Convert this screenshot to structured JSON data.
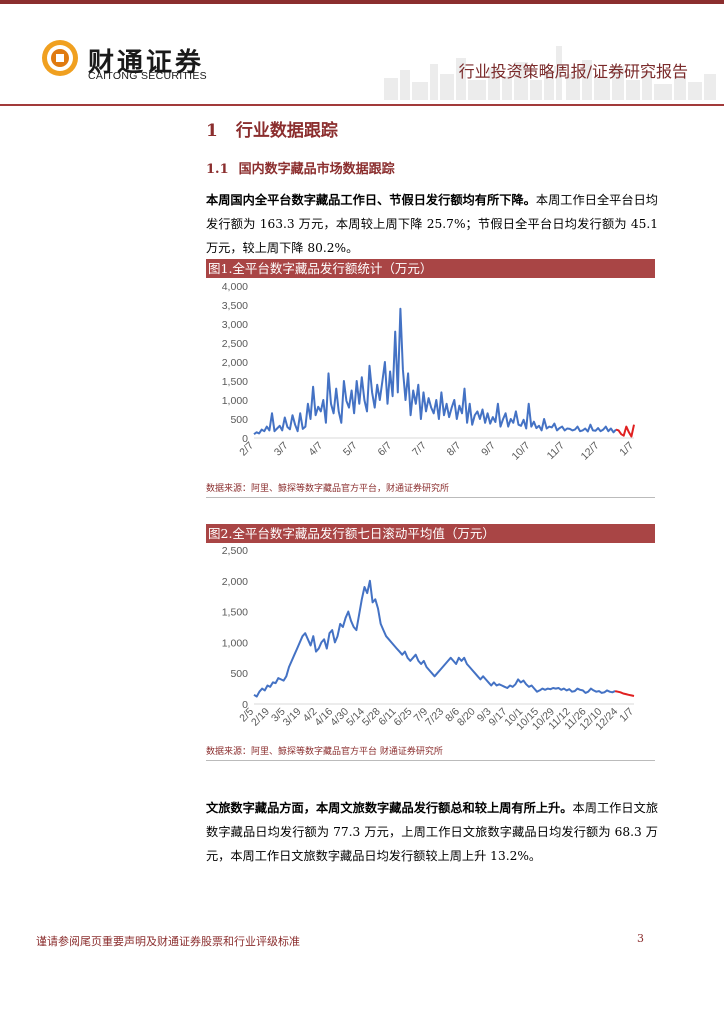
{
  "header": {
    "company_cn": "财通证券",
    "company_en": "CAITONG SECURITIES",
    "report_type": "行业投资策略周报/证券研究报告"
  },
  "section1": {
    "num": "1",
    "title": "行业数据跟踪"
  },
  "section1_1": {
    "num": "1.1",
    "title": "国内数字藏品市场数据跟踪"
  },
  "para1": {
    "bold": "本周国内全平台数字藏品工作日、节假日发行额均有所下降。",
    "rest": "本周工作日全平台日均发行额为 163.3 万元，本周较上周下降 25.7%；节假日全平台日均发行额为 45.1 万元，较上周下降 80.2%。"
  },
  "para2": {
    "bold": "文旅数字藏品方面，本周文旅数字藏品发行额总和较上周有所上升。",
    "rest": "本周工作日文旅数字藏品日均发行额为 77.3 万元，上周工作日文旅数字藏品日均发行额为 68.3 万元，本周工作日文旅数字藏品日均发行额较上周上升 13.2%。"
  },
  "figure1": {
    "title": "图1.全平台数字藏品发行额统计（万元）",
    "source": "数据来源：阿里、鲸探等数字藏品官方平台，财通证券研究所"
  },
  "figure2": {
    "title": "图2.全平台数字藏品发行额七日滚动平均值（万元）",
    "source": "数据来源：阿里、鲸探等数字藏品官方平台 财通证券研究所"
  },
  "footer": {
    "disclaimer": "谨请参阅尾页重要声明及财通证券股票和行业评级标准",
    "page": "3"
  },
  "colors": {
    "accent": "#8b2e2e",
    "series": "#4472c4",
    "recent": "#e02020"
  },
  "chart_data": [
    {
      "type": "line",
      "ylim": [
        0,
        4000
      ],
      "yticks": [
        "0",
        "500",
        "1,000",
        "1,500",
        "2,000",
        "2,500",
        "3,000",
        "3,500",
        "4,000"
      ],
      "xticks": [
        "2/7",
        "3/7",
        "4/7",
        "5/7",
        "6/7",
        "7/7",
        "8/7",
        "9/7",
        "10/7",
        "11/7",
        "12/7",
        "1/7"
      ],
      "series": [
        {
          "values": [
            100,
            150,
            120,
            220,
            180,
            300,
            200,
            650,
            180,
            250,
            320,
            200,
            540,
            290,
            230,
            600,
            350,
            180,
            650,
            240,
            300,
            900,
            500,
            1350,
            600,
            820,
            700,
            1000,
            400,
            1700,
            900,
            650,
            1300,
            700,
            400,
            1500,
            980,
            800,
            1250,
            650,
            1500,
            900,
            1600,
            1000,
            700,
            1900,
            1200,
            800,
            1400,
            1000,
            1500,
            2000,
            900,
            1750,
            1100,
            2800,
            1200,
            3400,
            1800,
            1000,
            1700,
            600,
            1250,
            900,
            1400,
            500,
            1200,
            700,
            1050,
            800,
            650,
            1000,
            500,
            1200,
            600,
            900,
            550,
            800,
            1000,
            500,
            850,
            650,
            1300,
            400,
            900,
            350,
            600,
            700,
            500,
            750,
            400,
            650,
            380,
            550,
            420,
            900,
            300,
            500,
            650,
            300,
            500,
            400,
            700,
            350,
            320,
            480,
            250,
            900,
            300,
            430,
            260,
            320,
            200,
            500,
            250,
            300,
            280,
            380,
            200,
            260,
            300,
            200,
            250,
            240,
            200,
            220,
            300,
            180,
            200,
            250,
            170,
            350,
            200,
            190,
            260,
            180,
            220,
            300,
            180,
            250,
            150,
            220
          ]
        },
        {
          "name": "",
          "values": [
            200,
            100,
            60,
            300,
            150,
            40,
            350
          ]
        }
      ]
    },
    {
      "type": "line",
      "ylim": [
        0,
        2500
      ],
      "yticks": [
        "0",
        "500",
        "1,000",
        "1,500",
        "2,000",
        "2,500"
      ],
      "xticks": [
        "2/5",
        "2/19",
        "3/5",
        "3/19",
        "4/2",
        "4/16",
        "4/30",
        "5/14",
        "5/28",
        "6/11",
        "6/25",
        "7/9",
        "7/23",
        "8/6",
        "8/20",
        "9/3",
        "9/17",
        "10/1",
        "10/15",
        "10/29",
        "11/12",
        "11/26",
        "12/10",
        "12/24",
        "1/7"
      ],
      "series": [
        {
          "values": [
            150,
            120,
            200,
            250,
            220,
            300,
            280,
            350,
            340,
            420,
            400,
            380,
            450,
            600,
            700,
            800,
            900,
            1000,
            1100,
            1150,
            1050,
            950,
            1100,
            850,
            900,
            1000,
            1050,
            900,
            1150,
            1200,
            1000,
            1100,
            1300,
            1250,
            1400,
            1500,
            1350,
            1250,
            1200,
            1450,
            1700,
            1900,
            1800,
            2000,
            1650,
            1700,
            1550,
            1300,
            1200,
            1100,
            1050,
            1000,
            950,
            900,
            850,
            800,
            850,
            750,
            700,
            750,
            800,
            700,
            650,
            700,
            600,
            550,
            500,
            450,
            500,
            550,
            600,
            650,
            700,
            750,
            700,
            650,
            750,
            700,
            750,
            650,
            600,
            550,
            500,
            450,
            400,
            450,
            400,
            350,
            300,
            350,
            300,
            320,
            300,
            280,
            260,
            300,
            280,
            320,
            400,
            350,
            380,
            320,
            280,
            300,
            250,
            200,
            220,
            250,
            230,
            250,
            240,
            260,
            250,
            260,
            230,
            250,
            220,
            240,
            200,
            210,
            250,
            230,
            220,
            180,
            200,
            250,
            220,
            200,
            210,
            180,
            190,
            220,
            200,
            190,
            210
          ]
        },
        {
          "name": "",
          "values": [
            200,
            190,
            170,
            160,
            150,
            140,
            130
          ]
        }
      ]
    }
  ]
}
